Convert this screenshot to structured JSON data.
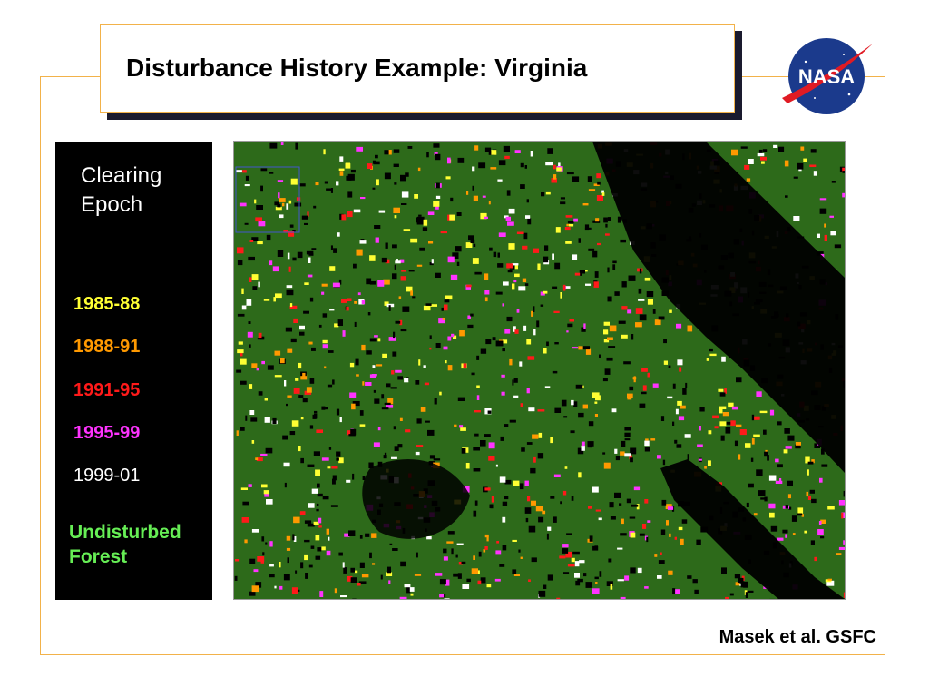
{
  "slide": {
    "title": "Disturbance History Example:  Virginia",
    "credit": "Masek et al. GSFC"
  },
  "logo": {
    "text": "NASA",
    "icon": "nasa-meatball-icon",
    "colors": {
      "circle": "#1b3a8c",
      "swoosh": "#e01b24",
      "text": "#ffffff"
    }
  },
  "legend": {
    "heading_line1": "Clearing",
    "heading_line2": "Epoch",
    "items": [
      {
        "label": "1985-88",
        "color": "#ffff33"
      },
      {
        "label": "1988-91",
        "color": "#ff9900"
      },
      {
        "label": "1991-95",
        "color": "#ff1a1a"
      },
      {
        "label": "1995-99",
        "color": "#ff33ff"
      },
      {
        "label": "1999-01",
        "color": "#ffffff"
      }
    ],
    "forest_line1": "Undisturbed",
    "forest_line2": "Forest",
    "forest_color": "#66ee55"
  },
  "map": {
    "forest_color": "#2d6a1a",
    "background_color": "#000000",
    "disturbance_colors": [
      "#ffff33",
      "#ff9900",
      "#ff1a1a",
      "#ff33ff",
      "#ffffff"
    ]
  }
}
